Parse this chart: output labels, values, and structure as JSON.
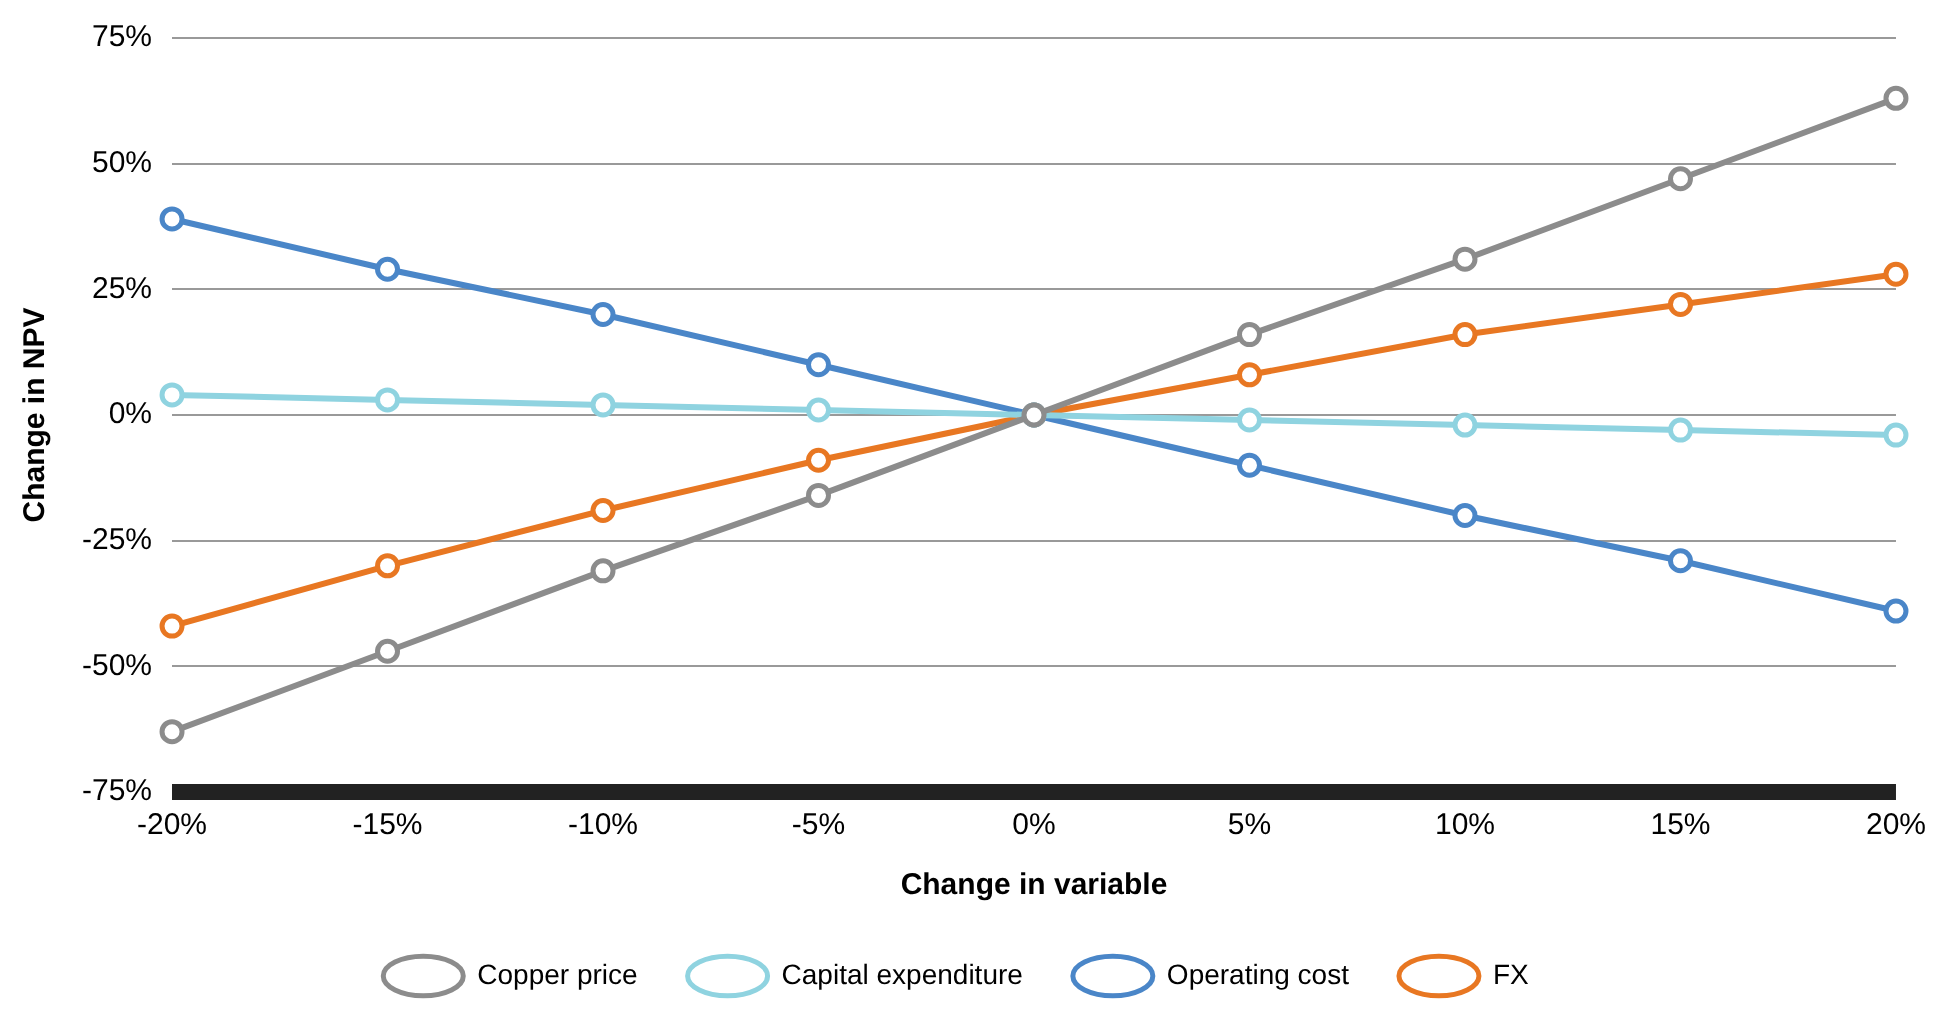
{
  "chart_data": {
    "type": "line",
    "xlabel": "Change in variable",
    "ylabel": "Change in NPV",
    "categories": [
      "-20%",
      "-15%",
      "-10%",
      "-5%",
      "0%",
      "5%",
      "10%",
      "15%",
      "20%"
    ],
    "series": [
      {
        "name": "Copper price",
        "color": "#8c8c8c",
        "values": [
          -63,
          -47,
          -31,
          -16,
          0,
          16,
          31,
          47,
          63
        ]
      },
      {
        "name": "Capital expenditure",
        "color": "#8fd3e0",
        "values": [
          4,
          3,
          2,
          1,
          0,
          -1,
          -2,
          -3,
          -4
        ]
      },
      {
        "name": "Operating cost",
        "color": "#4a86c8",
        "values": [
          39,
          29,
          20,
          10,
          0,
          -10,
          -20,
          -29,
          -39
        ]
      },
      {
        "name": "FX",
        "color": "#e87722",
        "values": [
          -42,
          -30,
          -19,
          -9,
          0,
          8,
          16,
          22,
          28
        ]
      }
    ],
    "ylim": [
      -75,
      75
    ],
    "yticks": [
      {
        "value": -75,
        "label": "-75%"
      },
      {
        "value": -50,
        "label": "-50%"
      },
      {
        "value": -25,
        "label": "-25%"
      },
      {
        "value": 0,
        "label": "0%"
      },
      {
        "value": 25,
        "label": "25%"
      },
      {
        "value": 50,
        "label": "50%"
      },
      {
        "value": 75,
        "label": "75%"
      }
    ],
    "grid": "y",
    "legend": "bottom",
    "marker": "circle",
    "line_style": "solid"
  }
}
